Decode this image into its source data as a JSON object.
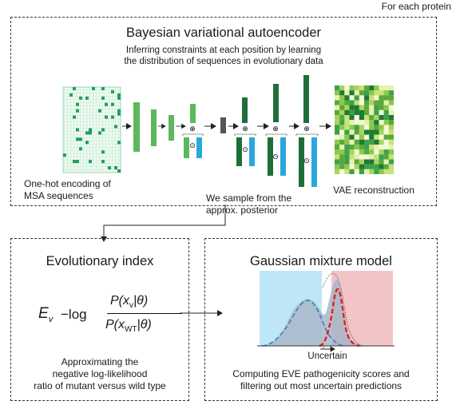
{
  "header": {
    "label": "For each protein"
  },
  "vae_panel": {
    "title": "Bayesian variational autoencoder",
    "subtitle_line1": "Inferring constraints at each position by learning",
    "subtitle_line2": "the distribution of sequences in evolutionary data",
    "input_label_line1": "One-hot encoding of",
    "input_label_line2": "MSA sequences",
    "output_label": "VAE reconstruction",
    "sample_label_line1": "We sample from the",
    "sample_label_line2": "approx. posterior",
    "plus_symbol": "⊕",
    "dot_symbol": "⊙"
  },
  "evo_panel": {
    "title": "Evolutionary index",
    "formula": {
      "lhs": "E",
      "lhs_sub": "v",
      "op": "−log",
      "num_p": "P(x",
      "num_sub": "v",
      "num_tail": "|θ)",
      "den_p": "P(x",
      "den_sub": "WT",
      "den_tail": "|θ)"
    },
    "caption_line1": "Approximating the",
    "caption_line2": "negative log-likelihood",
    "caption_line3": "ratio of mutant versus wild type"
  },
  "gmm_panel": {
    "title": "Gaussian mixture model",
    "uncertain_label": "Uncertain",
    "caption_line1": "Computing EVE pathogenicity scores and",
    "caption_line2": "filtering out most uncertain predictions"
  },
  "colors": {
    "light_green": "#5cb85c",
    "dark_green": "#1f6e3a",
    "gray_block": "#555555",
    "blue_block": "#2aa7dc",
    "benign_fill": "#bfe6f7",
    "pathogenic_fill": "#f2c4c8",
    "red_curve": "#e02020",
    "blue_curve": "#3b7fc4",
    "hist_fill": "#a8b6c8"
  }
}
